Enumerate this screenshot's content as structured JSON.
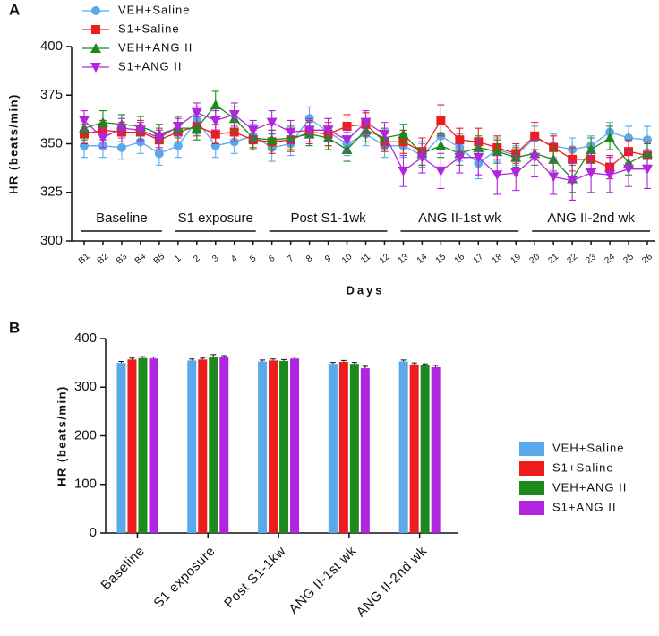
{
  "chart_data": [
    {
      "type": "line",
      "panel": "A",
      "ylabel": "HR (beats/min)",
      "xlabel": "Days",
      "categories": [
        "B1",
        "B2",
        "B3",
        "B4",
        "B5",
        "1",
        "2",
        "3",
        "4",
        "5",
        "6",
        "7",
        "8",
        "9",
        "10",
        "11",
        "12",
        "13",
        "14",
        "15",
        "16",
        "17",
        "18",
        "19",
        "20",
        "21",
        "22",
        "23",
        "24",
        "25",
        "26"
      ],
      "ylim": [
        300,
        400
      ],
      "yticks": [
        300,
        325,
        350,
        375,
        400
      ],
      "legend": "upper left",
      "annotations": [
        "Baseline",
        "S1 exposure",
        "Post S1-1wk",
        "ANG II-1st wk",
        "ANG II-2nd wk"
      ],
      "series": [
        {
          "name": "VEH+Saline",
          "color": "#5aa9ea",
          "marker": "circle",
          "values": [
            349,
            349,
            348,
            351,
            345,
            349,
            362,
            349,
            351,
            354,
            348,
            350,
            363,
            356,
            350,
            355,
            349,
            349,
            344,
            354,
            348,
            340,
            347,
            344,
            353,
            349,
            347,
            349,
            356,
            353,
            352
          ],
          "errors": [
            6,
            6,
            6,
            6,
            6,
            6,
            7,
            6,
            6,
            6,
            7,
            6,
            6,
            7,
            6,
            6,
            6,
            6,
            6,
            7,
            7,
            8,
            6,
            5,
            6,
            6,
            6,
            5,
            5,
            6,
            7
          ]
        },
        {
          "name": "S1+Saline",
          "color": "#ee1c1c",
          "marker": "square",
          "values": [
            355,
            357,
            356,
            356,
            352,
            356,
            359,
            355,
            356,
            352,
            351,
            352,
            356,
            355,
            359,
            360,
            351,
            351,
            346,
            362,
            352,
            351,
            348,
            345,
            354,
            348,
            342,
            342,
            338,
            346,
            344
          ],
          "errors": [
            5,
            5,
            5,
            5,
            5,
            5,
            5,
            5,
            5,
            5,
            6,
            6,
            6,
            6,
            6,
            6,
            5,
            6,
            7,
            8,
            6,
            7,
            6,
            5,
            7,
            6,
            6,
            6,
            6,
            6,
            6
          ]
        },
        {
          "name": "VEH+ANG II",
          "color": "#1c8a1c",
          "marker": "triangle",
          "values": [
            358,
            361,
            360,
            359,
            355,
            358,
            358,
            370,
            363,
            353,
            352,
            353,
            355,
            353,
            347,
            357,
            353,
            355,
            345,
            349,
            345,
            348,
            346,
            343,
            345,
            342,
            332,
            347,
            353,
            340,
            345
          ],
          "errors": [
            6,
            6,
            5,
            5,
            5,
            5,
            6,
            7,
            6,
            5,
            5,
            6,
            6,
            6,
            6,
            6,
            5,
            5,
            6,
            6,
            6,
            6,
            6,
            5,
            6,
            6,
            7,
            6,
            6,
            6,
            6
          ]
        },
        {
          "name": "S1+ANG II",
          "color": "#b026e0",
          "marker": "triangle-down",
          "values": [
            362,
            353,
            358,
            357,
            353,
            359,
            366,
            362,
            365,
            357,
            361,
            356,
            357,
            357,
            352,
            361,
            355,
            336,
            343,
            336,
            343,
            343,
            334,
            335,
            343,
            333,
            331,
            335,
            334,
            337,
            337
          ],
          "errors": [
            5,
            5,
            5,
            5,
            5,
            5,
            5,
            5,
            6,
            5,
            6,
            6,
            6,
            6,
            6,
            6,
            6,
            8,
            8,
            9,
            8,
            9,
            10,
            9,
            10,
            9,
            10,
            10,
            9,
            9,
            10
          ]
        }
      ]
    },
    {
      "type": "bar",
      "panel": "B",
      "ylabel": "HR (beats/min)",
      "categories": [
        "Baseline",
        "S1 exposure",
        "Post S1-1kw",
        "ANG II-1st wk",
        "ANG II-2nd wk"
      ],
      "ylim": [
        0,
        400
      ],
      "yticks": [
        0,
        100,
        200,
        300,
        400
      ],
      "legend": "right",
      "series": [
        {
          "name": "VEH+Saline",
          "color": "#5aa9ea",
          "values": [
            350,
            355,
            353,
            348,
            353
          ],
          "errors": [
            3,
            3,
            3,
            3,
            3
          ]
        },
        {
          "name": "S1+Saline",
          "color": "#ee1c1c",
          "values": [
            357,
            357,
            355,
            352,
            347
          ],
          "errors": [
            3,
            3,
            3,
            3,
            3
          ]
        },
        {
          "name": "VEH+ANG II",
          "color": "#1c8a1c",
          "values": [
            360,
            363,
            354,
            348,
            345
          ],
          "errors": [
            3,
            4,
            3,
            3,
            3
          ]
        },
        {
          "name": "S1+ANG II",
          "color": "#b026e0",
          "values": [
            359,
            362,
            359,
            339,
            341
          ],
          "errors": [
            3,
            3,
            3,
            4,
            4
          ]
        }
      ]
    }
  ]
}
